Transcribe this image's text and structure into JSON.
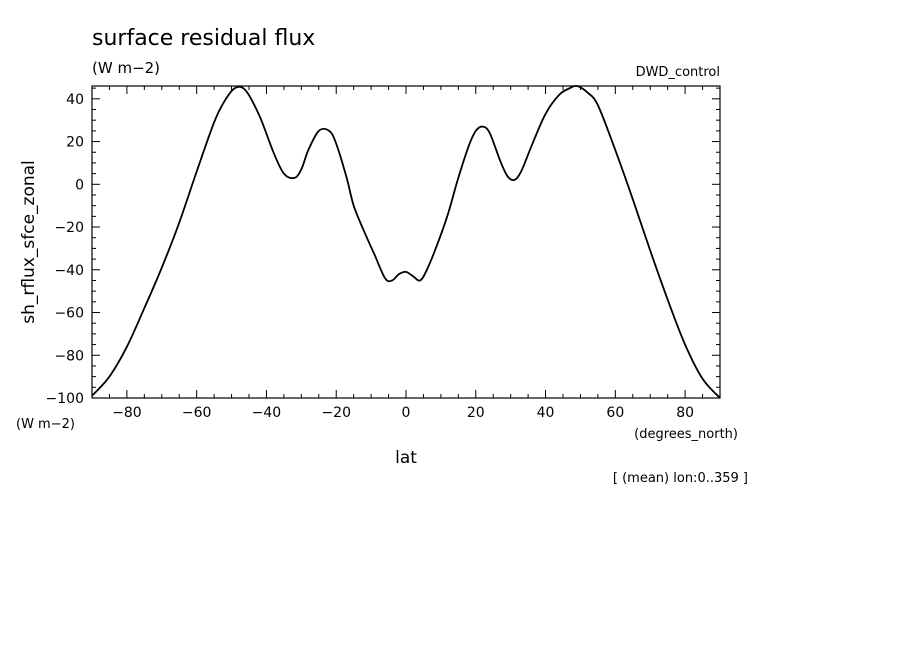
{
  "chart_data": {
    "type": "line",
    "title": "surface residual flux",
    "units": "(W m−2)",
    "dataset": "DWD_control",
    "ylabel": "sh_rflux_sfce_zonal",
    "ylabel_units": "(W m−2)",
    "xlabel": "lat",
    "xlabel_units": "(degrees_north)",
    "footnote": "[ (mean) lon:0..359 ]",
    "xlim": [
      -90,
      90
    ],
    "ylim": [
      -100,
      46
    ],
    "x_ticks": [
      -80,
      -60,
      -40,
      -20,
      0,
      20,
      40,
      60,
      80
    ],
    "x_tick_labels": [
      "−80",
      "−60",
      "−40",
      "−20",
      "0",
      "20",
      "40",
      "60",
      "80"
    ],
    "y_ticks": [
      40,
      20,
      0,
      -20,
      -40,
      -60,
      -80,
      -100
    ],
    "y_tick_labels": [
      "40",
      "20",
      "0",
      "−20",
      "−40",
      "−60",
      "−80",
      "−100"
    ],
    "grid": false,
    "series": [
      {
        "x": [
          -90,
          -85,
          -80,
          -75,
          -70,
          -65,
          -60,
          -55,
          -52,
          -49,
          -46,
          -42,
          -38,
          -35,
          -32,
          -30,
          -28,
          -25,
          -22,
          -20,
          -17,
          -15,
          -12,
          -9,
          -6,
          -4,
          -2,
          0,
          2,
          4,
          6,
          9,
          12,
          15,
          18,
          20,
          22,
          24,
          27,
          29,
          31,
          33,
          36,
          40,
          44,
          47,
          49,
          52,
          55,
          60,
          65,
          70,
          75,
          80,
          85,
          90
        ],
        "y": [
          -99,
          -90,
          -76,
          -58,
          -39,
          -18,
          6,
          29,
          39,
          45,
          44,
          32,
          15,
          5,
          3,
          7,
          16,
          25,
          25,
          19,
          3,
          -10,
          -22,
          -33,
          -44,
          -45,
          -42,
          -41,
          -43,
          -45,
          -40,
          -28,
          -14,
          3,
          18,
          25,
          27,
          24,
          11,
          4,
          2,
          6,
          18,
          33,
          42,
          45,
          46,
          43,
          37,
          16,
          -7,
          -31,
          -54,
          -75,
          -91,
          -100
        ]
      }
    ]
  }
}
